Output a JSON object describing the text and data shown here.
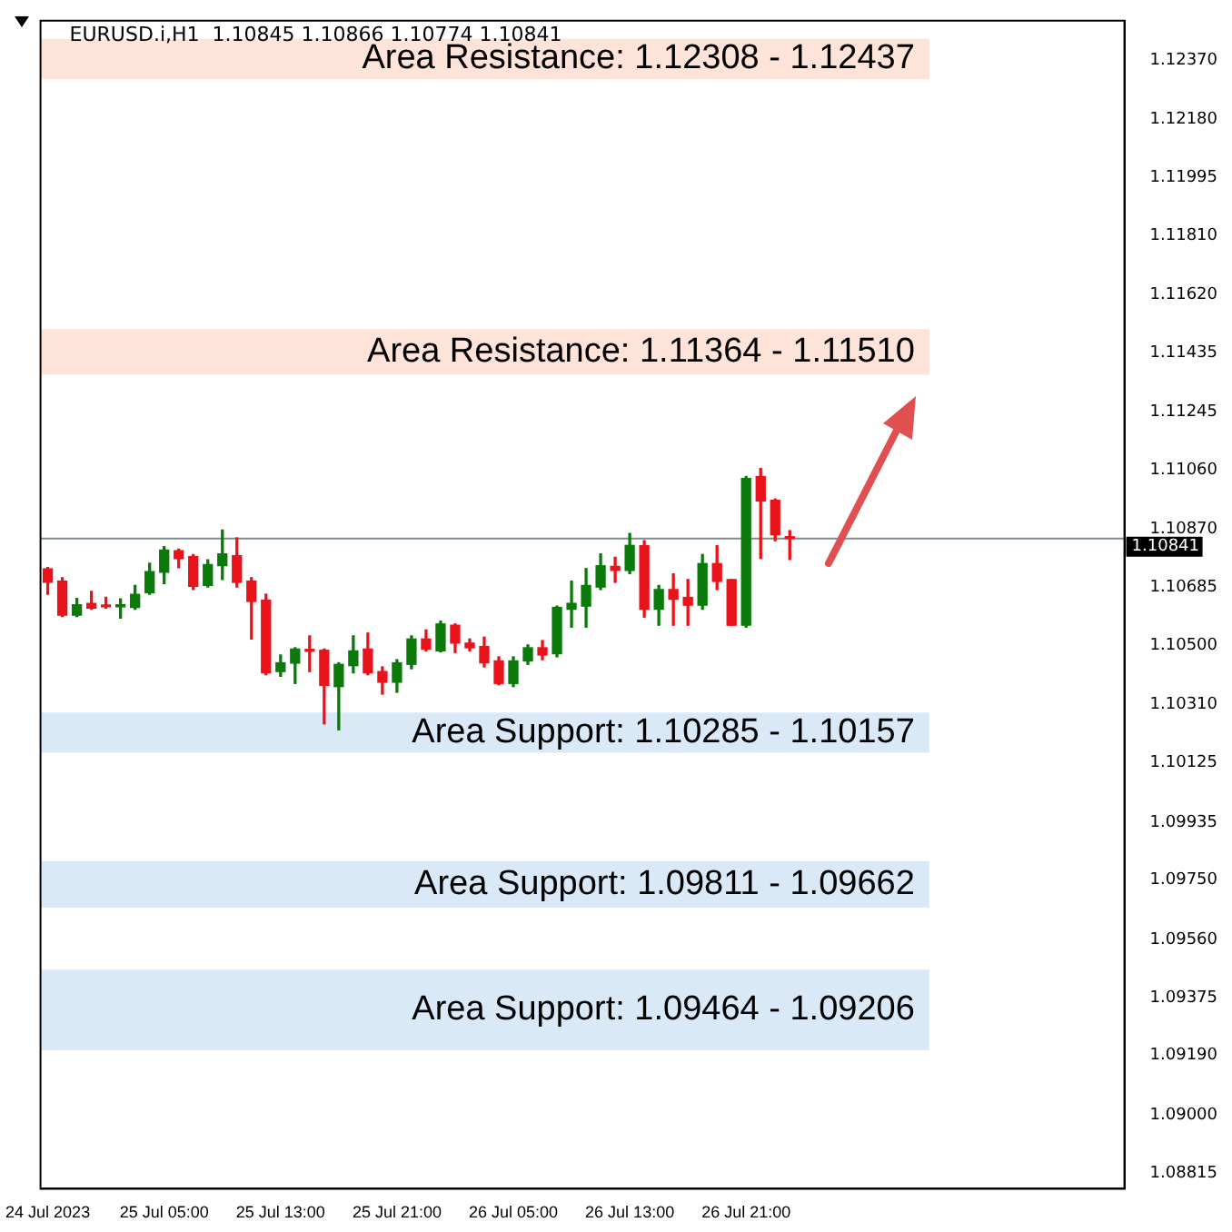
{
  "chart_data": {
    "type": "candlestick",
    "title": "EURUSD.i,H1  1.10845 1.10866 1.10774 1.10841",
    "x": [
      "2023-07-24T21:00",
      "2023-07-24T22:00",
      "2023-07-24T23:00",
      "2023-07-25T00:00",
      "2023-07-25T01:00",
      "2023-07-25T02:00",
      "2023-07-25T03:00",
      "2023-07-25T04:00",
      "2023-07-25T05:00",
      "2023-07-25T06:00",
      "2023-07-25T07:00",
      "2023-07-25T08:00",
      "2023-07-25T09:00",
      "2023-07-25T10:00",
      "2023-07-25T11:00",
      "2023-07-25T12:00",
      "2023-07-25T13:00",
      "2023-07-25T14:00",
      "2023-07-25T15:00",
      "2023-07-25T16:00",
      "2023-07-25T17:00",
      "2023-07-25T18:00",
      "2023-07-25T19:00",
      "2023-07-25T20:00",
      "2023-07-25T21:00",
      "2023-07-25T22:00",
      "2023-07-25T23:00",
      "2023-07-26T00:00",
      "2023-07-26T01:00",
      "2023-07-26T02:00",
      "2023-07-26T03:00",
      "2023-07-26T04:00",
      "2023-07-26T05:00",
      "2023-07-26T06:00",
      "2023-07-26T07:00",
      "2023-07-26T08:00",
      "2023-07-26T09:00",
      "2023-07-26T10:00",
      "2023-07-26T11:00",
      "2023-07-26T12:00",
      "2023-07-26T13:00",
      "2023-07-26T14:00",
      "2023-07-26T15:00",
      "2023-07-26T16:00",
      "2023-07-26T17:00",
      "2023-07-26T18:00",
      "2023-07-26T19:00",
      "2023-07-26T20:00",
      "2023-07-26T21:00",
      "2023-07-26T22:00",
      "2023-07-26T23:00",
      "2023-07-27T00:00"
    ],
    "ohlc": [
      [
        1.10744,
        1.10748,
        1.10663,
        1.10701
      ],
      [
        1.10705,
        1.10716,
        1.10592,
        1.10596
      ],
      [
        1.10596,
        1.1065,
        1.10592,
        1.10629
      ],
      [
        1.10634,
        1.10672,
        1.10615,
        1.10619
      ],
      [
        1.10625,
        1.10653,
        1.10619,
        1.10623
      ],
      [
        1.10623,
        1.10648,
        1.10587,
        1.10629
      ],
      [
        1.10621,
        1.10691,
        1.10615,
        1.10663
      ],
      [
        1.10668,
        1.10762,
        1.10663,
        1.10735
      ],
      [
        1.10733,
        1.10815,
        1.10697,
        1.10804
      ],
      [
        1.10802,
        1.10807,
        1.10748,
        1.10777
      ],
      [
        1.10783,
        1.1079,
        1.10678,
        1.10688
      ],
      [
        1.10691,
        1.10773,
        1.10686,
        1.10758
      ],
      [
        1.10754,
        1.10868,
        1.1071,
        1.10792
      ],
      [
        1.10786,
        1.10843,
        1.10686,
        1.10701
      ],
      [
        1.10705,
        1.10716,
        1.1052,
        1.1064
      ],
      [
        1.10644,
        1.10663,
        1.10406,
        1.10412
      ],
      [
        1.10416,
        1.10469,
        1.10401,
        1.10444
      ],
      [
        1.10443,
        1.10492,
        1.10378,
        1.10488
      ],
      [
        1.10486,
        1.1053,
        1.10416,
        1.10481
      ],
      [
        1.10484,
        1.10488,
        1.10249,
        1.10372
      ],
      [
        1.10368,
        1.10444,
        1.1023,
        1.10439
      ],
      [
        1.10435,
        1.1053,
        1.10412,
        1.10482
      ],
      [
        1.10488,
        1.10539,
        1.10406,
        1.10412
      ],
      [
        1.10416,
        1.10431,
        1.10344,
        1.10382
      ],
      [
        1.10382,
        1.10454,
        1.1035,
        1.10444
      ],
      [
        1.10439,
        1.1053,
        1.10425,
        1.1052
      ],
      [
        1.1052,
        1.10549,
        1.10482,
        1.10488
      ],
      [
        1.10482,
        1.10577,
        1.10479,
        1.10568
      ],
      [
        1.10564,
        1.10568,
        1.10477,
        1.10507
      ],
      [
        1.10507,
        1.1052,
        1.10482,
        1.10492
      ],
      [
        1.10496,
        1.10526,
        1.10431,
        1.10444
      ],
      [
        1.1045,
        1.10463,
        1.10374,
        1.10378
      ],
      [
        1.10378,
        1.10463,
        1.10368,
        1.1045
      ],
      [
        1.1045,
        1.10501,
        1.10439,
        1.10492
      ],
      [
        1.10492,
        1.10515,
        1.10454,
        1.10469
      ],
      [
        1.10473,
        1.10625,
        1.10463,
        1.10621
      ],
      [
        1.10615,
        1.10705,
        1.10558,
        1.10634
      ],
      [
        1.10625,
        1.10745,
        1.10558,
        1.10691
      ],
      [
        1.10686,
        1.10792,
        1.10678,
        1.10754
      ],
      [
        1.10752,
        1.10781,
        1.10701,
        1.10739
      ],
      [
        1.10739,
        1.10857,
        1.10729,
        1.10819
      ],
      [
        1.10818,
        1.10834,
        1.1059,
        1.10615
      ],
      [
        1.10615,
        1.10691,
        1.10564,
        1.10678
      ],
      [
        1.10678,
        1.10728,
        1.10564,
        1.10647
      ],
      [
        1.10653,
        1.1071,
        1.10564,
        1.10628
      ],
      [
        1.10628,
        1.1079,
        1.10615,
        1.10761
      ],
      [
        1.10761,
        1.10818,
        1.10678,
        1.10704
      ],
      [
        1.1071,
        1.1071,
        1.10564,
        1.10564
      ],
      [
        1.10564,
        1.11039,
        1.10558,
        1.11033
      ],
      [
        1.11039,
        1.11065,
        1.10777,
        1.10961
      ],
      [
        1.10963,
        1.10967,
        1.10834,
        1.10853
      ],
      [
        1.10845,
        1.10866,
        1.10774,
        1.10841
      ]
    ],
    "colors": [
      "#e8131b",
      "#e8131b",
      "#0b7a0b",
      "#e8131b",
      "#e8131b",
      "#0b7a0b",
      "#0b7a0b",
      "#0b7a0b",
      "#0b7a0b",
      "#e8131b",
      "#e8131b",
      "#0b7a0b",
      "#0b7a0b",
      "#e8131b",
      "#e8131b",
      "#e8131b",
      "#0b7a0b",
      "#0b7a0b",
      "#e8131b",
      "#e8131b",
      "#0b7a0b",
      "#0b7a0b",
      "#e8131b",
      "#e8131b",
      "#0b7a0b",
      "#0b7a0b",
      "#e8131b",
      "#0b7a0b",
      "#e8131b",
      "#e8131b",
      "#e8131b",
      "#e8131b",
      "#0b7a0b",
      "#0b7a0b",
      "#e8131b",
      "#0b7a0b",
      "#0b7a0b",
      "#0b7a0b",
      "#0b7a0b",
      "#e8131b",
      "#0b7a0b",
      "#e8131b",
      "#0b7a0b",
      "#e8131b",
      "#e8131b",
      "#0b7a0b",
      "#e8131b",
      "#e8131b",
      "#0b7a0b",
      "#e8131b",
      "#e8131b",
      "#e8131b"
    ],
    "xlim": [
      "2023-07-24T20:30",
      "2023-07-27T23:00"
    ],
    "xticks": [
      {
        "value": "2023-07-24T21:00",
        "label": "24 Jul 2023"
      },
      {
        "value": "2023-07-25T05:00",
        "label": "25 Jul 05:00"
      },
      {
        "value": "2023-07-25T13:00",
        "label": "25 Jul 13:00"
      },
      {
        "value": "2023-07-25T21:00",
        "label": "25 Jul 21:00"
      },
      {
        "value": "2023-07-26T05:00",
        "label": "26 Jul 05:00"
      },
      {
        "value": "2023-07-26T13:00",
        "label": "26 Jul 13:00"
      },
      {
        "value": "2023-07-26T21:00",
        "label": "26 Jul 21:00"
      }
    ],
    "ylim": [
      1.08764,
      1.12495
    ],
    "yticks": [
      {
        "value": 1.08815,
        "label": "1.08815"
      },
      {
        "value": 1.09,
        "label": "1.09000"
      },
      {
        "value": 1.0919,
        "label": "1.09190"
      },
      1.09375,
      {
        "value": 1.0956,
        "label": "1.09560"
      },
      {
        "value": 1.0975,
        "label": "1.09750"
      },
      1.09935,
      1.10125,
      {
        "value": 1.1031,
        "label": "1.10310"
      },
      {
        "value": 1.105,
        "label": "1.10500"
      },
      1.10685,
      {
        "value": 1.1087,
        "label": "1.10870"
      },
      {
        "value": 1.1106,
        "label": "1.11060"
      },
      1.11245,
      1.11435,
      {
        "value": 1.1162,
        "label": "1.11620"
      },
      {
        "value": 1.1181,
        "label": "1.11810"
      },
      1.11995,
      {
        "value": 1.1218,
        "label": "1.12180"
      },
      {
        "value": 1.1237,
        "label": "1.12370"
      }
    ],
    "ref_lines": [
      {
        "axis": "y",
        "value": 1.10841,
        "label": "1.10841",
        "color": "#7f8c8d"
      }
    ],
    "bands": [
      {
        "axis": "y",
        "from": 1.12308,
        "to": 1.12437,
        "label": "Area Resistance: 1.12308 - 1.12437",
        "color": "#fde3d8"
      },
      {
        "axis": "y",
        "from": 1.11364,
        "to": 1.1151,
        "label": "Area Resistance: 1.11364 - 1.11510",
        "color": "#fde3d8"
      },
      {
        "axis": "y",
        "from": 1.10157,
        "to": 1.10285,
        "label": "Area Support: 1.10285 - 1.10157",
        "color": "#d9e9f8"
      },
      {
        "axis": "y",
        "from": 1.09662,
        "to": 1.09811,
        "label": "Area Support: 1.09811 - 1.09662",
        "color": "#d9e9f8"
      },
      {
        "axis": "y",
        "from": 1.09206,
        "to": 1.09464,
        "label": "Area Support: 1.09464 - 1.09206",
        "color": "#d9e9f8"
      }
    ],
    "grid": false,
    "legend": false
  }
}
